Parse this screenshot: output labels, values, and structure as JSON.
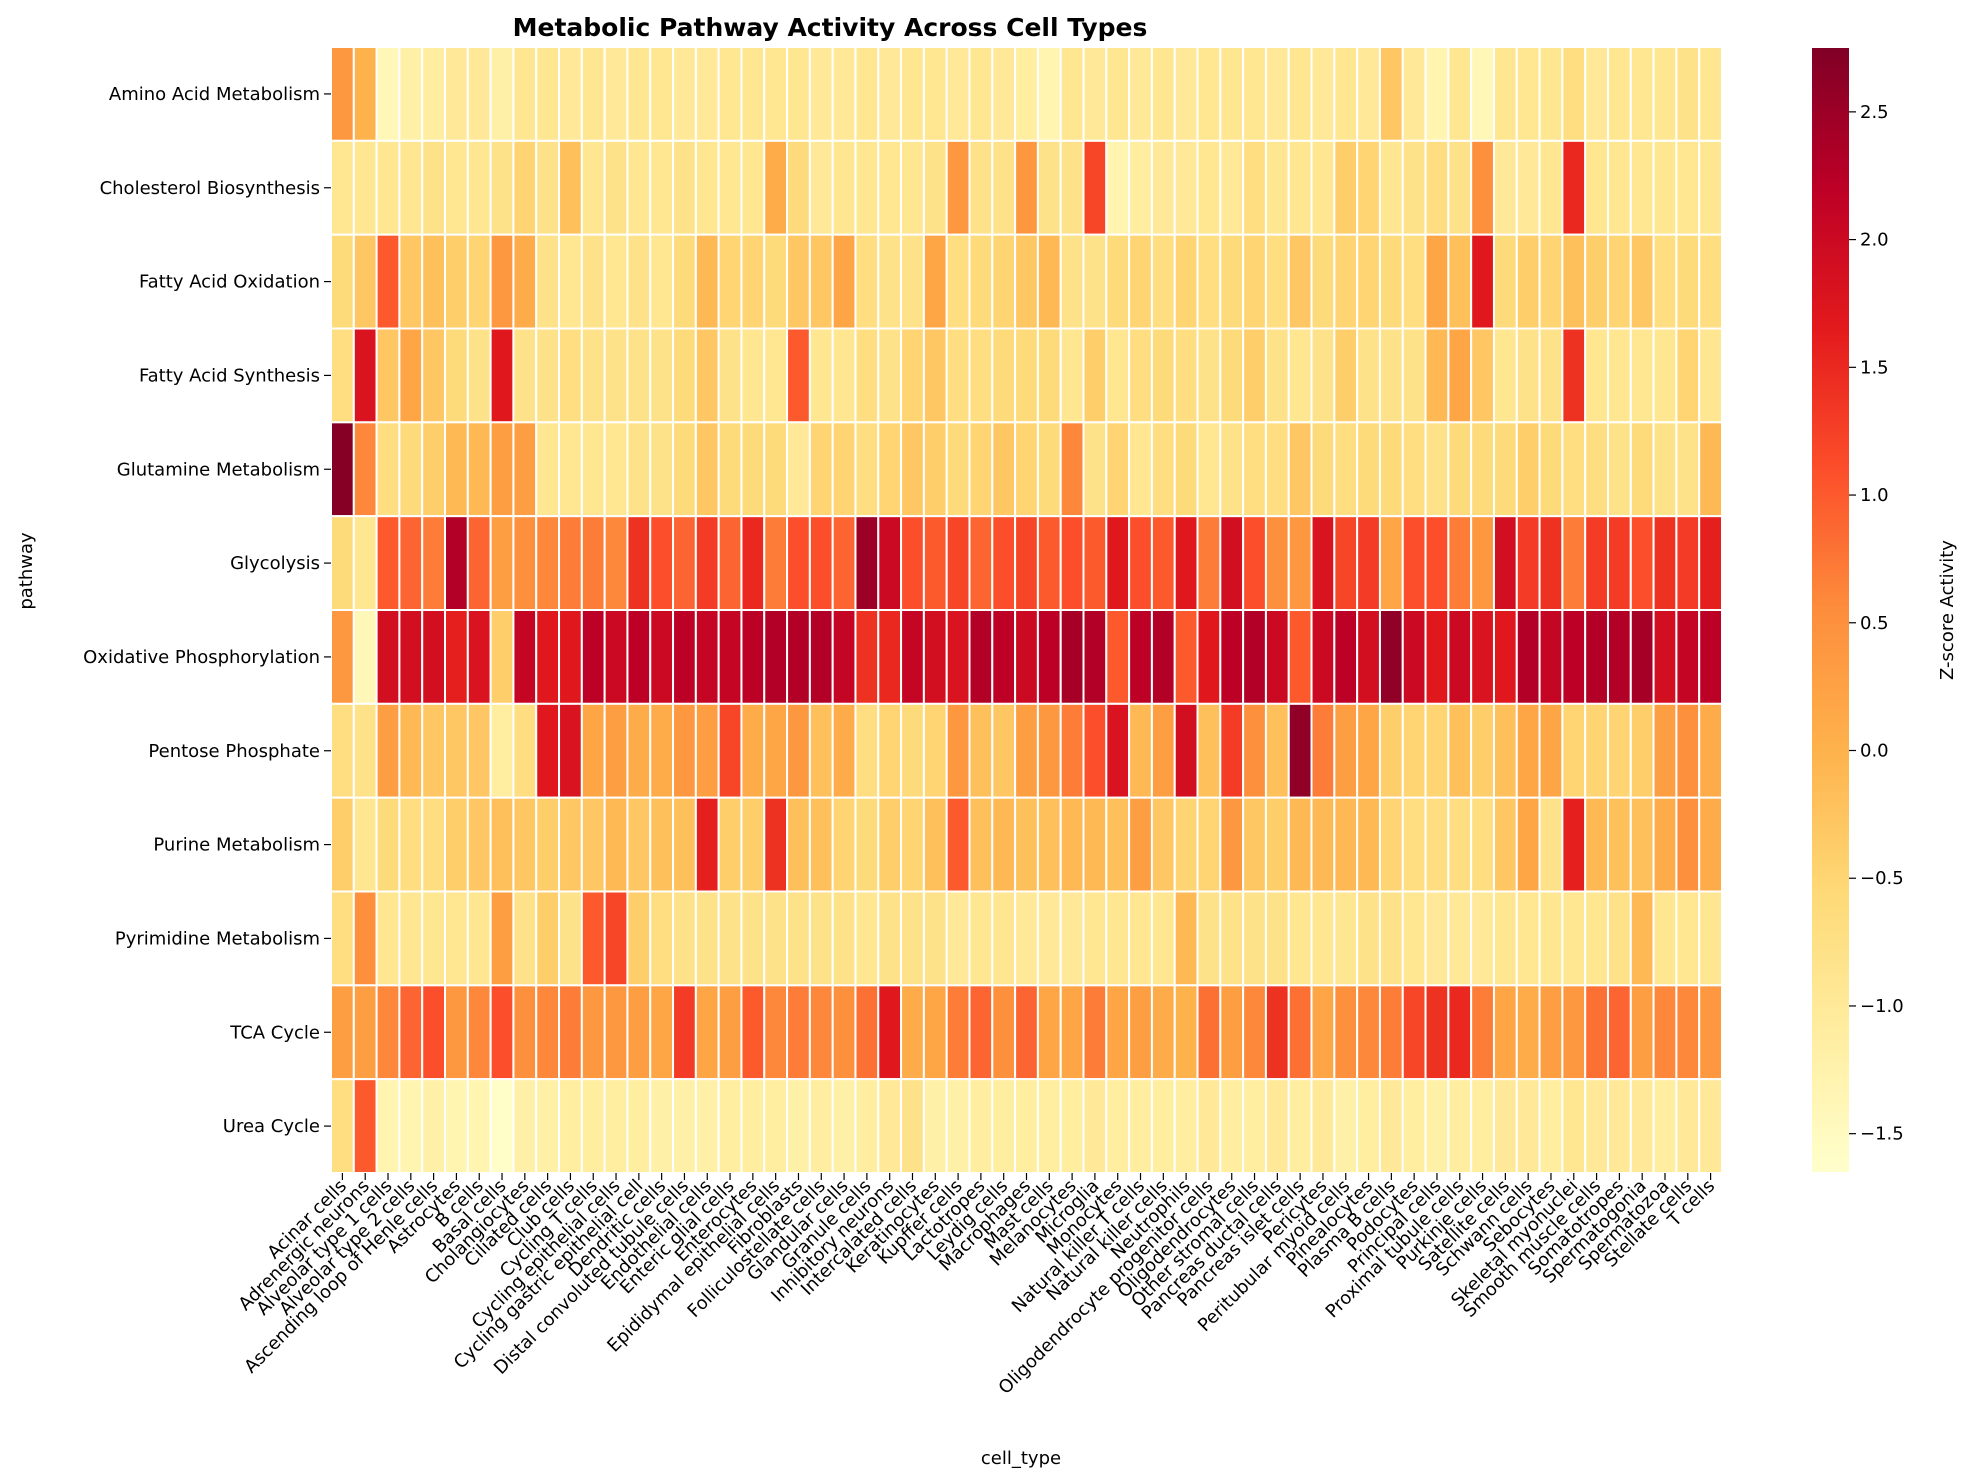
{
  "chart_data": {
    "type": "heatmap",
    "title": "Metabolic Pathway Activity Across Cell Types",
    "xlabel": "cell_type",
    "ylabel": "pathway",
    "colorbar_label": "Z-score Activity",
    "colormap": "YlOrRd",
    "colorbar_range": [
      -1.65,
      2.75
    ],
    "colorbar_ticks": [
      2.5,
      2.0,
      1.5,
      1.0,
      0.5,
      0.0,
      -0.5,
      -1.0,
      -1.5
    ],
    "colorbar_tick_labels": [
      "2.5",
      "2.0",
      "1.5",
      "1.0",
      "0.5",
      "0.0",
      "−0.5",
      "−1.0",
      "−1.5"
    ],
    "rows": [
      "Amino Acid Metabolism",
      "Cholesterol Biosynthesis",
      "Fatty Acid Oxidation",
      "Fatty Acid Synthesis",
      "Glutamine Metabolism",
      "Glycolysis",
      "Oxidative Phosphorylation",
      "Pentose Phosphate",
      "Purine Metabolism",
      "Pyrimidine Metabolism",
      "TCA Cycle",
      "Urea Cycle"
    ],
    "columns": [
      "Acinar cells",
      "Adrenergic neurons",
      "Alveolar type 1 cells",
      "Alveolar type 2 cells",
      "Ascending loop of Henle cells",
      "Astrocytes",
      "B cells",
      "Basal cells",
      "Cholangiocytes",
      "Ciliated cells",
      "Club cells",
      "Cycling T cells",
      "Cycling epithelial cells",
      "Cycling gastric epithelial cell",
      "Dendritic cells",
      "Distal convoluted tubule cells",
      "Endothelial cells",
      "Enteric glial cells",
      "Enterocytes",
      "Epididymal epithelial cells",
      "Fibroblasts",
      "Folliculostellate cells",
      "Glandular cells",
      "Granule cells",
      "Inhibitory neurons",
      "Intercalated cells",
      "Keratinocytes",
      "Kupffer cells",
      "Lactotropes",
      "Leydig cells",
      "Macrophages",
      "Mast cells",
      "Melanocytes",
      "Microglia",
      "Monocytes",
      "Natural killer T cells",
      "Natural killer cells",
      "Neutrophils",
      "Oligodendrocyte progenitor cells",
      "Oligodendrocytes",
      "Other stromal cells",
      "Pancreas ductal cells",
      "Pancreas islet cells",
      "Pericytes",
      "Peritubular myoid cells",
      "Pinealocytes",
      "Plasma B cells",
      "Podocytes",
      "Principal cells",
      "Proximal tubule cells",
      "Purkinje cells",
      "Satellite cells",
      "Schwann cells",
      "Sebocytes",
      "Skeletal myonuclei",
      "Smooth muscle cells",
      "Somatotropes",
      "Spermatogonia",
      "Spermatozoa",
      "Stellate cells",
      "T cells"
    ],
    "values": [
      [
        0.4,
        0.0,
        -1.4,
        -1.2,
        -1.1,
        -1.0,
        -1.0,
        -1.2,
        -0.9,
        -0.9,
        -1.0,
        -0.9,
        -1.0,
        -0.9,
        -0.9,
        -1.0,
        -1.0,
        -0.9,
        -0.9,
        -0.9,
        -0.9,
        -1.0,
        -1.0,
        -0.9,
        -1.0,
        -0.9,
        -0.9,
        -1.0,
        -0.9,
        -1.0,
        -1.1,
        -1.3,
        -0.9,
        -1.0,
        -0.9,
        -1.0,
        -0.9,
        -1.0,
        -0.9,
        -0.9,
        -0.9,
        -1.0,
        -0.9,
        -1.0,
        -0.9,
        -1.0,
        -0.3,
        -1.0,
        -1.3,
        -0.9,
        -1.4,
        -0.9,
        -0.9,
        -0.9,
        -0.7,
        -1.0,
        -0.9,
        -0.9,
        -0.9,
        -0.8,
        -0.9
      ],
      [
        -0.9,
        -0.9,
        -0.9,
        -0.9,
        -0.8,
        -0.9,
        -0.9,
        -0.8,
        -0.5,
        -0.8,
        -0.2,
        -0.9,
        -0.8,
        -0.9,
        -0.9,
        -0.8,
        -0.9,
        -0.9,
        -0.9,
        0.1,
        -0.6,
        -1.0,
        -0.9,
        -0.9,
        -0.9,
        -0.9,
        -0.8,
        0.4,
        -0.8,
        -0.8,
        0.4,
        -0.8,
        -0.8,
        1.2,
        -1.3,
        -1.1,
        -1.0,
        -1.0,
        -0.9,
        -1.0,
        -0.7,
        -0.9,
        -0.9,
        -0.9,
        -0.4,
        -0.5,
        -0.9,
        -0.8,
        -0.7,
        -0.8,
        0.5,
        -1.0,
        -1.0,
        -0.9,
        1.5,
        -0.9,
        -0.9,
        -0.9,
        -0.9,
        -0.9,
        -0.9
      ],
      [
        -0.6,
        -0.3,
        1.0,
        -0.3,
        -0.2,
        -0.4,
        -0.5,
        0.4,
        0.1,
        -0.8,
        -0.9,
        -0.8,
        -0.9,
        -0.8,
        -0.9,
        -0.6,
        -0.1,
        -0.5,
        -0.5,
        -0.6,
        -0.3,
        -0.3,
        0.2,
        -0.7,
        -0.8,
        -0.8,
        0.2,
        -0.7,
        -0.6,
        -0.5,
        -0.3,
        -0.1,
        -0.8,
        -0.8,
        -0.6,
        -0.5,
        -0.7,
        -0.5,
        -0.7,
        -0.6,
        -0.5,
        -0.7,
        -0.3,
        -0.6,
        -0.5,
        -0.5,
        -0.6,
        -0.7,
        0.2,
        -0.2,
        1.7,
        -0.6,
        -0.4,
        -0.5,
        -0.2,
        -0.4,
        -0.5,
        -0.3,
        -0.7,
        -0.6,
        -0.7
      ],
      [
        -0.7,
        1.8,
        -0.3,
        0.2,
        -0.3,
        -0.6,
        -0.8,
        1.7,
        -0.8,
        -0.8,
        -0.7,
        -0.8,
        -0.8,
        -0.8,
        -0.8,
        -0.6,
        -0.3,
        -0.8,
        -0.9,
        -0.9,
        1.0,
        -0.9,
        -0.9,
        -0.7,
        -0.8,
        -0.5,
        -0.3,
        -0.7,
        -0.7,
        -0.6,
        -0.6,
        -0.6,
        -0.9,
        -0.4,
        -0.9,
        -0.7,
        -0.6,
        -0.7,
        -0.8,
        -0.6,
        -0.4,
        -0.8,
        -0.9,
        -0.8,
        -0.4,
        -0.8,
        -0.8,
        -0.8,
        -0.1,
        0.2,
        -0.3,
        -0.9,
        -0.8,
        -0.8,
        1.4,
        -0.9,
        -0.9,
        -0.9,
        -0.9,
        -0.5,
        -0.9
      ],
      [
        2.7,
        0.6,
        -0.7,
        -0.6,
        -0.4,
        -0.1,
        -0.1,
        0.3,
        0.3,
        -0.9,
        -0.9,
        -0.9,
        -0.9,
        -0.8,
        -0.8,
        -0.6,
        -0.3,
        -0.6,
        -0.6,
        -0.6,
        -1.0,
        -0.5,
        -0.5,
        -0.7,
        -0.5,
        -0.3,
        -0.4,
        -0.6,
        -0.5,
        -0.3,
        -0.5,
        -0.6,
        0.6,
        -0.8,
        -0.5,
        -0.9,
        -0.7,
        -0.6,
        -0.9,
        -0.8,
        -0.7,
        -0.7,
        -0.3,
        -0.6,
        -0.7,
        -0.6,
        -0.6,
        -0.7,
        -0.8,
        -0.6,
        -0.6,
        -0.6,
        -0.4,
        -0.6,
        -0.7,
        -0.7,
        -0.8,
        -0.6,
        -0.8,
        -0.8,
        -0.1
      ],
      [
        -0.6,
        -0.9,
        1.0,
        0.9,
        0.7,
        2.3,
        0.9,
        0.3,
        0.5,
        0.6,
        0.7,
        0.7,
        0.6,
        1.4,
        1.1,
        0.9,
        1.3,
        0.9,
        1.5,
        0.7,
        1.1,
        1.1,
        0.9,
        2.5,
        2.0,
        1.1,
        1.0,
        1.2,
        0.9,
        1.1,
        1.2,
        1.0,
        1.1,
        1.0,
        1.7,
        1.1,
        1.0,
        1.7,
        0.7,
        1.9,
        1.1,
        0.5,
        0.4,
        1.8,
        1.2,
        1.3,
        0.2,
        1.1,
        1.1,
        0.7,
        0.4,
        1.9,
        1.3,
        1.4,
        0.7,
        1.3,
        1.3,
        1.1,
        1.4,
        1.3,
        1.6
      ],
      [
        0.4,
        -1.4,
        1.9,
        1.9,
        1.9,
        1.6,
        1.8,
        -0.4,
        2.1,
        1.7,
        1.7,
        2.2,
        2.0,
        2.2,
        2.0,
        2.2,
        2.1,
        2.1,
        2.2,
        2.3,
        2.3,
        2.3,
        2.1,
        1.4,
        1.5,
        2.1,
        1.9,
        1.8,
        2.3,
        2.2,
        2.0,
        2.2,
        2.4,
        2.3,
        1.0,
        2.2,
        2.3,
        1.0,
        1.7,
        2.2,
        2.3,
        2.0,
        1.0,
        2.0,
        2.2,
        1.9,
        2.6,
        2.0,
        1.7,
        2.0,
        1.8,
        1.7,
        2.3,
        2.1,
        2.2,
        2.3,
        2.3,
        2.4,
        1.9,
        2.1,
        2.2
      ],
      [
        -0.7,
        -0.8,
        0.3,
        -0.1,
        -0.3,
        -0.3,
        -0.3,
        -1.1,
        -0.7,
        1.7,
        1.8,
        0.2,
        0.3,
        0.1,
        0.1,
        0.4,
        0.3,
        1.2,
        0.1,
        0.2,
        0.4,
        -0.2,
        0.1,
        -0.7,
        -0.5,
        -0.6,
        -0.5,
        0.4,
        -0.2,
        -0.3,
        0.3,
        0.4,
        0.7,
        1.1,
        1.8,
        -0.1,
        0.3,
        1.9,
        -0.2,
        1.3,
        0.5,
        -0.2,
        2.6,
        0.7,
        0.3,
        0.2,
        -0.4,
        -0.5,
        -0.5,
        -0.2,
        -0.4,
        -0.2,
        0.2,
        0.2,
        -0.5,
        -0.5,
        -0.5,
        -0.4,
        0.3,
        0.5,
        0.1
      ],
      [
        -0.4,
        -0.9,
        -0.6,
        -0.7,
        -0.7,
        -0.4,
        -0.3,
        -0.2,
        -0.3,
        -0.4,
        -0.3,
        -0.3,
        -0.1,
        -0.3,
        -0.2,
        -0.2,
        1.6,
        -0.4,
        -0.4,
        1.4,
        -0.2,
        -0.2,
        -0.5,
        -0.6,
        -0.4,
        -0.5,
        -0.2,
        1.0,
        -0.2,
        -0.1,
        -0.2,
        -0.2,
        -0.1,
        -0.1,
        -0.2,
        0.3,
        -0.3,
        -0.5,
        -0.5,
        0.4,
        -0.3,
        -0.4,
        -0.1,
        -0.1,
        -0.1,
        -0.1,
        -0.5,
        -0.7,
        -0.7,
        -0.7,
        -0.7,
        -0.3,
        0.2,
        -0.8,
        1.6,
        -0.1,
        -0.2,
        -0.2,
        0.1,
        0.5,
        0.1
      ],
      [
        -0.7,
        0.5,
        -0.9,
        -0.9,
        -0.9,
        -0.9,
        -0.9,
        0.3,
        -0.8,
        -0.4,
        -0.8,
        1.0,
        1.2,
        -0.4,
        -0.7,
        -0.8,
        -0.8,
        -0.8,
        -0.8,
        -0.8,
        -0.8,
        -0.8,
        -0.8,
        -0.9,
        -0.8,
        -0.8,
        -0.8,
        -1.0,
        -0.9,
        -0.9,
        -1.0,
        -1.0,
        -1.0,
        -0.9,
        -0.9,
        -0.9,
        -0.9,
        -0.1,
        -0.8,
        -0.8,
        -0.8,
        -0.8,
        -0.9,
        -0.9,
        -0.9,
        -0.8,
        -0.8,
        -0.9,
        -1.0,
        -1.0,
        -1.0,
        -0.9,
        -0.9,
        -0.9,
        -0.9,
        -0.9,
        -0.8,
        -0.1,
        -0.9,
        -0.9,
        -0.9
      ],
      [
        0.3,
        0.3,
        0.6,
        0.9,
        1.1,
        0.4,
        0.6,
        1.1,
        0.5,
        0.6,
        0.7,
        0.4,
        0.4,
        0.3,
        0.2,
        1.3,
        0.2,
        0.3,
        1.0,
        0.6,
        0.7,
        0.6,
        0.5,
        0.8,
        1.7,
        0.1,
        0.2,
        0.7,
        0.9,
        0.5,
        0.9,
        0.2,
        0.2,
        0.7,
        0.2,
        0.3,
        0.1,
        0.0,
        0.8,
        0.3,
        0.6,
        1.4,
        0.8,
        0.2,
        0.5,
        0.6,
        0.7,
        1.2,
        1.4,
        1.5,
        0.7,
        0.2,
        0.1,
        0.3,
        0.4,
        0.8,
        0.9,
        0.3,
        0.6,
        0.6,
        0.4
      ],
      [
        -0.7,
        1.0,
        -1.3,
        -1.3,
        -1.2,
        -1.3,
        -1.3,
        -1.6,
        -1.2,
        -1.2,
        -1.1,
        -1.1,
        -1.1,
        -1.1,
        -1.2,
        -1.2,
        -1.2,
        -1.1,
        -1.1,
        -1.1,
        -1.2,
        -1.1,
        -1.2,
        -1.1,
        -1.0,
        -0.8,
        -1.2,
        -1.2,
        -1.1,
        -1.1,
        -1.1,
        -1.1,
        -1.1,
        -1.0,
        -1.1,
        -1.1,
        -1.1,
        -1.1,
        -1.0,
        -1.1,
        -1.1,
        -1.0,
        -1.1,
        -1.0,
        -1.2,
        -1.1,
        -1.0,
        -1.1,
        -1.2,
        -1.1,
        -1.1,
        -1.0,
        -1.0,
        -1.1,
        -0.9,
        -1.0,
        -1.0,
        -1.0,
        -1.1,
        -1.0,
        -1.0
      ]
    ]
  }
}
